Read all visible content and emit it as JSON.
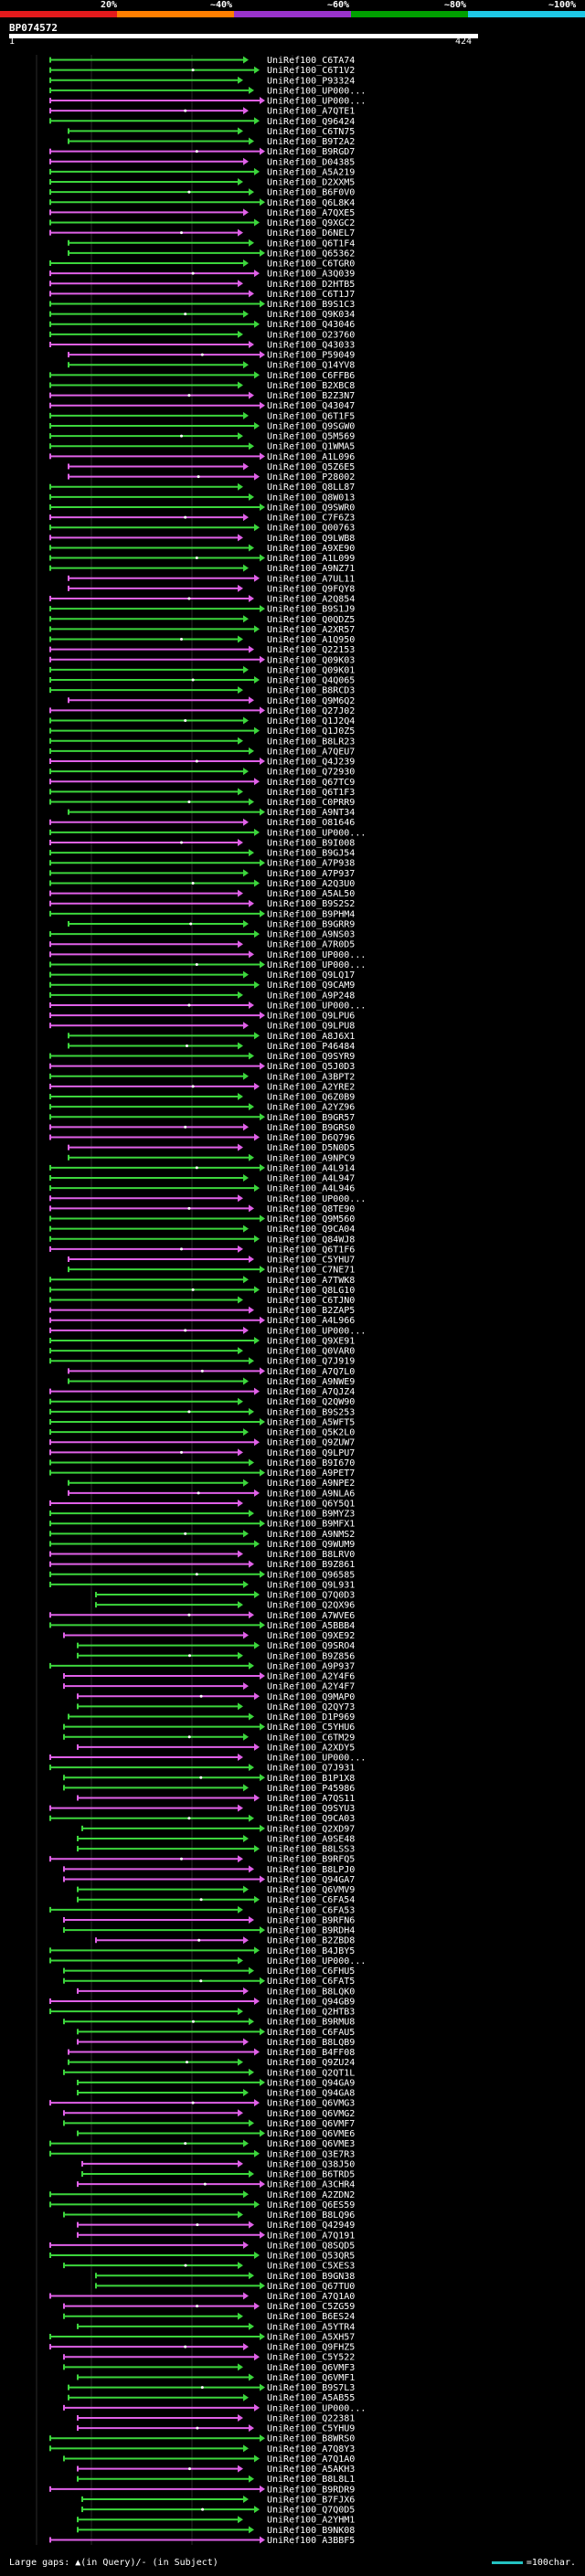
{
  "scale": {
    "labels": [
      "20%",
      "~40%",
      "~60%",
      "~80%",
      "~100%"
    ],
    "colors": [
      "#e31a1c",
      "#ff7f00",
      "#9933cc",
      "#00a000",
      "#1ec8e6"
    ]
  },
  "query": {
    "title": "BP074572",
    "start": "1",
    "end": "424"
  },
  "legend": {
    "left": "Large gaps: ▲(in Query)/- (in Subject)",
    "right": "=100char."
  },
  "colors": {
    "green": "#3cd63c",
    "magenta": "#e060e8",
    "label": "#ffffff"
  },
  "hits": [
    "UniRef100_C6TA74",
    "UniRef100_C6T1V2",
    "UniRef100_P93324",
    "UniRef100_UP000...",
    "UniRef100_UP000...",
    "UniRef100_A7QTE1",
    "UniRef100_Q96424",
    "UniRef100_C6TN75",
    "UniRef100_B9T2A2",
    "UniRef100_B9RGD7",
    "UniRef100_D04385",
    "UniRef100_A5A219",
    "UniRef100_D2XXM5",
    "UniRef100_B6F0V0",
    "UniRef100_Q6L8K4",
    "UniRef100_A7QXE5",
    "UniRef100_Q9XGC2",
    "UniRef100_D6NEL7",
    "UniRef100_Q6T1F4",
    "UniRef100_Q65362",
    "UniRef100_C6TGR0",
    "UniRef100_A3Q039",
    "UniRef100_D2HTB5",
    "UniRef100_C6T1J7",
    "UniRef100_B9S1C3",
    "UniRef100_Q9K034",
    "UniRef100_Q43046",
    "UniRef100_O23760",
    "UniRef100_Q43033",
    "UniRef100_P59049",
    "UniRef100_Q14YV8",
    "UniRef100_C6FFB6",
    "UniRef100_B2XBC8",
    "UniRef100_B2Z3N7",
    "UniRef100_Q43047",
    "UniRef100_Q6T1F5",
    "UniRef100_Q9SGW0",
    "UniRef100_Q5M569",
    "UniRef100_Q1WMA5",
    "UniRef100_A1L096",
    "UniRef100_Q5Z6E5",
    "UniRef100_P28002",
    "UniRef100_Q8LL87",
    "UniRef100_Q8W013",
    "UniRef100_Q9SWR0",
    "UniRef100_C7F6Z3",
    "UniRef100_Q00763",
    "UniRef100_Q9LWB8",
    "UniRef100_A9XE90",
    "UniRef100_A1L099",
    "UniRef100_A9NZ71",
    "UniRef100_A7UL11",
    "UniRef100_Q9FQY8",
    "UniRef100_A2Q854",
    "UniRef100_B9S1J9",
    "UniRef100_Q0QDZ5",
    "UniRef100_A2XR57",
    "UniRef100_A1Q950",
    "UniRef100_Q22153",
    "UniRef100_Q09K03",
    "UniRef100_Q09K01",
    "UniRef100_Q4Q065",
    "UniRef100_B8RCD3",
    "UniRef100_Q9M6Q2",
    "UniRef100_Q27J02",
    "UniRef100_Q1J2Q4",
    "UniRef100_Q1J0Z5",
    "UniRef100_B8LR23",
    "UniRef100_A7QEU7",
    "UniRef100_Q4J239",
    "UniRef100_Q72930",
    "UniRef100_Q67TC9",
    "UniRef100_Q6T1F3",
    "UniRef100_C0PRR9",
    "UniRef100_A9NT34",
    "UniRef100_O81646",
    "UniRef100_UP000...",
    "UniRef100_B9I008",
    "UniRef100_B9GJ54",
    "UniRef100_A7P938",
    "UniRef100_A7P937",
    "UniRef100_A2Q3U0",
    "UniRef100_A5AL50",
    "UniRef100_B9S2S2",
    "UniRef100_B9PHM4",
    "UniRef100_B9GRR9",
    "UniRef100_A9NS03",
    "UniRef100_A7R0D5",
    "UniRef100_UP000...",
    "UniRef100_UP000...",
    "UniRef100_Q9LQ17",
    "UniRef100_Q9CAM9",
    "UniRef100_A9P248",
    "UniRef100_UP000...",
    "UniRef100_Q9LPU6",
    "UniRef100_Q9LPU8",
    "UniRef100_A8J6X1",
    "UniRef100_P46484",
    "UniRef100_Q9SYR9",
    "UniRef100_Q5J0D3",
    "UniRef100_A3BPT2",
    "UniRef100_A2YRE2",
    "UniRef100_Q6Z0B9",
    "UniRef100_A2YZ96",
    "UniRef100_B9GR57",
    "UniRef100_B9GRS0",
    "UniRef100_D6Q796",
    "UniRef100_D5N0D5",
    "UniRef100_A9NPC9",
    "UniRef100_A4L914",
    "UniRef100_A4L947",
    "UniRef100_A4L946",
    "UniRef100_UP000...",
    "UniRef100_Q8TE90",
    "UniRef100_Q9M560",
    "UniRef100_Q9CA04",
    "UniRef100_Q84WJ8",
    "UniRef100_Q6T1F6",
    "UniRef100_C5YHU7",
    "UniRef100_C7NE71",
    "UniRef100_A7TWK8",
    "UniRef100_Q8LG10",
    "UniRef100_C6TJN0",
    "UniRef100_B2ZAP5",
    "UniRef100_A4L966",
    "UniRef100_UP000...",
    "UniRef100_Q9XE91",
    "UniRef100_Q0VAR0",
    "UniRef100_Q7J919",
    "UniRef100_A7Q7L0",
    "UniRef100_A9NWE9",
    "UniRef100_A7QJZ4",
    "UniRef100_Q2QW90",
    "UniRef100_B9S253",
    "UniRef100_A5WFT5",
    "UniRef100_Q5K2L0",
    "UniRef100_Q9ZUW7",
    "UniRef100_Q9LPU7",
    "UniRef100_B9I670",
    "UniRef100_A9PET7",
    "UniRef100_A9NPE2",
    "UniRef100_A9NLA6",
    "UniRef100_Q6Y5Q1",
    "UniRef100_B9MYZ3",
    "UniRef100_B9MFX1",
    "UniRef100_A9NMS2",
    "UniRef100_Q9WUM9",
    "UniRef100_B8LRV0",
    "UniRef100_B9Z861",
    "UniRef100_Q96585",
    "UniRef100_Q9L931",
    "UniRef100_Q7Q0D3",
    "UniRef100_Q2QX96",
    "UniRef100_A7WVE6",
    "UniRef100_A5BBB4",
    "UniRef100_Q9XE92",
    "UniRef100_Q9SRO4",
    "UniRef100_B9Z856",
    "UniRef100_A9P937",
    "UniRef100_A2Y4F6",
    "UniRef100_A2Y4F7",
    "UniRef100_Q9MAP0",
    "UniRef100_Q2QY73",
    "UniRef100_D1P969",
    "UniRef100_C5YHU6",
    "UniRef100_C6TM29",
    "UniRef100_A2XDY5",
    "UniRef100_UP000...",
    "UniRef100_Q7J931",
    "UniRef100_B1P1X8",
    "UniRef100_P45986",
    "UniRef100_A7QS11",
    "UniRef100_Q9SYU3",
    "UniRef100_Q9CA03",
    "UniRef100_Q2XD97",
    "UniRef100_A9SE48",
    "UniRef100_B8LSS3",
    "UniRef100_B9RFQ5",
    "UniRef100_B8LPJ0",
    "UniRef100_Q94GA7",
    "UniRef100_Q6VMV9",
    "UniRef100_C6FA54",
    "UniRef100_C6FA53",
    "UniRef100_B9RFN6",
    "UniRef100_B9RDH4",
    "UniRef100_B2ZBD8",
    "UniRef100_B4JBY5",
    "UniRef100_UP000...",
    "UniRef100_C6FHU5",
    "UniRef100_C6FAT5",
    "UniRef100_B8LQK0",
    "UniRef100_Q94GB9",
    "UniRef100_Q2HTB3",
    "UniRef100_B9RMU8",
    "UniRef100_C6FAU5",
    "UniRef100_B8LQB9",
    "UniRef100_B4FF08",
    "UniRef100_Q9ZU24",
    "UniRef100_Q2QT1L",
    "UniRef100_Q94GA9",
    "UniRef100_Q94GA8",
    "UniRef100_Q6VMG3",
    "UniRef100_Q6VMG2",
    "UniRef100_Q6VMF7",
    "UniRef100_Q6VME6",
    "UniRef100_Q6VME3",
    "UniRef100_Q3E7R3",
    "UniRef100_Q38J50",
    "UniRef100_B6TRD5",
    "UniRef100_A3CHR4",
    "UniRef100_A2ZDN2",
    "UniRef100_Q6ES59",
    "UniRef100_B8LQ96",
    "UniRef100_Q42949",
    "UniRef100_A7Q191",
    "UniRef100_Q8SQD5",
    "UniRef100_Q53QR5",
    "UniRef100_C5XES3",
    "UniRef100_B9GN38",
    "UniRef100_Q67TU0",
    "UniRef100_A7Q1A0",
    "UniRef100_C5ZG59",
    "UniRef100_B6ES24",
    "UniRef100_A5YTR4",
    "UniRef100_A5XH57",
    "UniRef100_Q9FHZ5",
    "UniRef100_C5Y522",
    "UniRef100_Q6VMF3",
    "UniRef100_Q6VMF1",
    "UniRef100_B9S7L3",
    "UniRef100_A5AB55",
    "UniRef100_UP000...",
    "UniRef100_Q22381",
    "UniRef100_C5YHU9",
    "UniRef100_B8WRS0",
    "UniRef100_A7Q8Y3",
    "UniRef100_A7Q1A0",
    "UniRef100_A5AKH3",
    "UniRef100_B8L8L1",
    "UniRef100_B9RDR9",
    "UniRef100_B7FJX6",
    "UniRef100_Q7Q0D5",
    "UniRef100_A2YHM1",
    "UniRef100_B9NK08",
    "UniRef100_A3BBF5"
  ]
}
